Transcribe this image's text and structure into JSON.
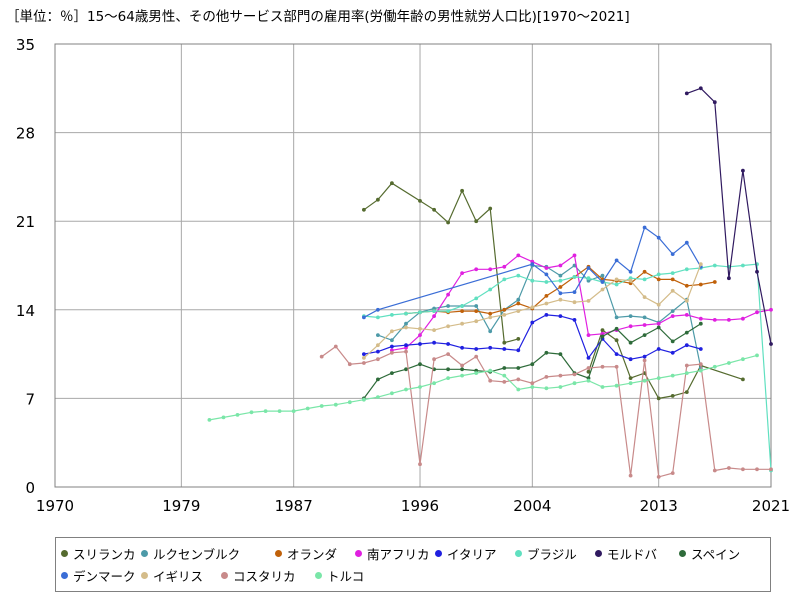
{
  "title": "［単位：％］15〜64歳男性、その他サービス部門の雇用率(労働年齢の男性就労人口比)[1970〜2021]",
  "chart_data": {
    "type": "line",
    "title": "［単位：％］15〜64歳男性、その他サービス部門の雇用率(労働年齢の男性就労人口比)[1970〜2021]",
    "xlabel": "",
    "ylabel": "",
    "xlim": [
      1970,
      2021
    ],
    "ylim": [
      0,
      35
    ],
    "x_ticks": [
      "1970",
      "1979",
      "1987",
      "1996",
      "2004",
      "2013",
      "2021"
    ],
    "y_ticks": [
      "0",
      "7",
      "14",
      "21",
      "28",
      "35"
    ],
    "grid": true,
    "legend_position": "bottom",
    "series": [
      {
        "name": "スリランカ",
        "color": "#556b2f",
        "x": [
          1992,
          1993,
          1994,
          1996,
          1997,
          1998,
          1999,
          2000,
          2001,
          2002,
          2003
        ],
        "y": [
          21.9,
          22.7,
          24.0,
          22.6,
          21.9,
          20.9,
          23.4,
          21.0,
          22.0,
          11.4,
          11.7
        ],
        "x2": [
          2008,
          2009,
          2010,
          2011,
          2012,
          2013,
          2014,
          2015,
          2016,
          2019
        ],
        "y2": [
          9.1,
          12.4,
          11.6,
          8.6,
          9.0,
          7.0,
          7.2,
          7.5,
          9.6,
          8.5
        ]
      },
      {
        "name": "ルクセンブルク",
        "color": "#4d9aa8",
        "x": [
          1993,
          1994,
          1995,
          1996,
          1997,
          1998,
          1999,
          2000,
          2001,
          2002,
          2003,
          2004,
          2005,
          2006,
          2007,
          2008,
          2009,
          2010,
          2011,
          2012,
          2013,
          2014,
          2015,
          2016
        ],
        "y": [
          12.0,
          11.6,
          12.9,
          13.8,
          14.1,
          14.3,
          14.3,
          14.3,
          12.3,
          14.0,
          14.8,
          17.5,
          17.4,
          16.7,
          17.5,
          16.3,
          16.7,
          13.4,
          13.5,
          13.4,
          13.0,
          13.9,
          14.8,
          9.4
        ]
      },
      {
        "name": "オランダ",
        "color": "#c0610a",
        "x": [
          1995,
          1996,
          1997,
          1998,
          1999,
          2000,
          2001,
          2002,
          2003,
          2004,
          2005,
          2006,
          2007,
          2008,
          2009,
          2010,
          2011,
          2012,
          2013,
          2014,
          2015,
          2016,
          2017
        ],
        "y": [
          13.7,
          13.8,
          13.9,
          13.8,
          13.9,
          13.9,
          13.7,
          14.0,
          14.5,
          14.1,
          15.1,
          15.8,
          16.6,
          17.4,
          16.4,
          16.3,
          16.1,
          17.0,
          16.4,
          16.4,
          15.9,
          16.0,
          16.2
        ]
      },
      {
        "name": "南アフリカ",
        "color": "#e020e0",
        "x": [
          1994,
          1995,
          1996,
          1997,
          1998,
          1999,
          2000,
          2001,
          2002,
          2003,
          2004,
          2005,
          2006,
          2007,
          2008,
          2009,
          2010,
          2011,
          2012,
          2013,
          2014,
          2015,
          2016,
          2017,
          2018,
          2019,
          2020,
          2021
        ],
        "y": [
          10.8,
          11.0,
          12.0,
          13.5,
          15.2,
          16.9,
          17.2,
          17.2,
          17.4,
          18.3,
          17.8,
          17.3,
          17.5,
          18.3,
          12.0,
          12.1,
          12.4,
          12.7,
          12.8,
          12.9,
          13.5,
          13.6,
          13.3,
          13.2,
          13.2,
          13.3,
          13.8,
          14.0
        ]
      },
      {
        "name": "イタリア",
        "color": "#2020e0",
        "x": [
          1992,
          1993,
          1994,
          1995,
          1996,
          1997,
          1998,
          1999,
          2000,
          2001,
          2002,
          2003,
          2004,
          2005,
          2006,
          2007,
          2008,
          2009,
          2010,
          2011,
          2012,
          2013,
          2014,
          2015,
          2016
        ],
        "y": [
          10.5,
          10.7,
          11.1,
          11.2,
          11.3,
          11.4,
          11.3,
          11.0,
          10.9,
          11.0,
          10.9,
          10.8,
          13.0,
          13.6,
          13.5,
          13.2,
          10.2,
          11.7,
          10.5,
          10.1,
          10.3,
          10.9,
          10.6,
          11.2,
          10.9
        ]
      },
      {
        "name": "ブラジル",
        "color": "#60e0c0",
        "x": [
          1992,
          1993,
          1994,
          1995,
          1996,
          1997,
          1998,
          1999,
          2000,
          2001,
          2002,
          2003,
          2004,
          2005,
          2006,
          2007,
          2008,
          2009,
          2010,
          2011,
          2012,
          2013,
          2014,
          2015,
          2016,
          2017,
          2018,
          2019,
          2020,
          2021
        ],
        "y": [
          13.5,
          13.4,
          13.6,
          13.7,
          13.8,
          13.9,
          13.9,
          14.3,
          14.9,
          15.6,
          16.4,
          16.7,
          16.3,
          16.2,
          16.3,
          16.6,
          16.5,
          16.2,
          16.0,
          16.5,
          16.4,
          16.8,
          16.9,
          17.2,
          17.3,
          17.5,
          17.4,
          17.5,
          17.6,
          1.3
        ]
      },
      {
        "name": "モルドバ",
        "color": "#301a60",
        "x": [
          2015,
          2016,
          2017,
          2018,
          2019,
          2020,
          2021
        ],
        "y": [
          31.1,
          31.5,
          30.4,
          16.5,
          25.0,
          17.0,
          11.3
        ]
      },
      {
        "name": "スペイン",
        "color": "#2e6b3a",
        "x": [
          1992,
          1993,
          1994,
          1995,
          1996,
          1997,
          1998,
          1999,
          2000,
          2001,
          2002,
          2003,
          2004,
          2005,
          2006,
          2007,
          2008,
          2009,
          2010,
          2011,
          2012,
          2013,
          2014,
          2015,
          2016
        ],
        "y": [
          7.0,
          8.5,
          9.0,
          9.3,
          9.7,
          9.3,
          9.3,
          9.3,
          9.2,
          9.1,
          9.4,
          9.4,
          9.7,
          10.6,
          10.5,
          9.0,
          8.6,
          11.9,
          12.5,
          11.4,
          12.0,
          12.6,
          11.5,
          12.2,
          12.9
        ]
      },
      {
        "name": "デンマーク",
        "color": "#3a6dd6",
        "x": [
          1992,
          1993,
          2004,
          2005,
          2006,
          2007,
          2008,
          2009,
          2010,
          2011,
          2012,
          2013,
          2014,
          2015,
          2016
        ],
        "y": [
          13.4,
          14.0,
          17.6,
          16.8,
          15.3,
          15.4,
          17.3,
          16.2,
          17.9,
          17.0,
          20.5,
          19.7,
          18.4,
          19.3,
          17.4
        ]
      },
      {
        "name": "イギリス",
        "color": "#d4bc8a",
        "x": [
          1992,
          1993,
          1994,
          1995,
          1996,
          1997,
          1998,
          1999,
          2000,
          2001,
          2002,
          2003,
          2004,
          2005,
          2006,
          2007,
          2008,
          2009,
          2010,
          2011,
          2012,
          2013,
          2014,
          2015,
          2016
        ],
        "y": [
          10.2,
          11.2,
          12.3,
          12.6,
          12.5,
          12.4,
          12.7,
          12.9,
          13.1,
          13.4,
          13.6,
          13.9,
          14.2,
          14.5,
          14.8,
          14.6,
          14.7,
          15.6,
          16.4,
          16.3,
          15.0,
          14.4,
          15.5,
          14.7,
          17.6
        ]
      },
      {
        "name": "コスタリカ",
        "color": "#c88a8a",
        "x": [
          1989,
          1990,
          1991,
          1992,
          1993,
          1994,
          1995,
          1996,
          1997,
          1998,
          1999,
          2000,
          2001,
          2002,
          2003,
          2004,
          2005,
          2006,
          2007,
          2008,
          2009,
          2010,
          2011,
          2012,
          2013,
          2014,
          2015,
          2016,
          2017,
          2018,
          2019,
          2020,
          2021
        ],
        "y": [
          10.3,
          11.1,
          9.7,
          9.8,
          10.1,
          10.6,
          10.7,
          1.8,
          10.1,
          10.5,
          9.6,
          10.3,
          8.4,
          8.3,
          8.5,
          8.2,
          8.7,
          8.8,
          8.9,
          9.4,
          9.5,
          9.5,
          0.9,
          10.0,
          0.8,
          1.1,
          9.6,
          9.7,
          1.3,
          1.5,
          1.4,
          1.4,
          1.4
        ]
      },
      {
        "name": "トルコ",
        "color": "#7ae6a8",
        "x": [
          1981,
          1982,
          1983,
          1984,
          1985,
          1986,
          1987,
          1988,
          1989,
          1990,
          1991,
          1992,
          1993,
          1994,
          1995,
          1996,
          1997,
          1998,
          1999,
          2000,
          2001,
          2002,
          2003,
          2004,
          2005,
          2006,
          2007,
          2008,
          2009,
          2010,
          2011,
          2012,
          2013,
          2014,
          2015,
          2016,
          2017,
          2018,
          2019,
          2020
        ],
        "y": [
          5.3,
          5.5,
          5.7,
          5.9,
          6.0,
          6.0,
          6.0,
          6.2,
          6.4,
          6.5,
          6.7,
          6.9,
          7.1,
          7.4,
          7.7,
          7.9,
          8.2,
          8.6,
          8.8,
          9.0,
          9.2,
          8.8,
          7.7,
          7.9,
          7.8,
          7.9,
          8.2,
          8.4,
          7.9,
          8.0,
          8.2,
          8.4,
          8.6,
          8.8,
          9.0,
          9.2,
          9.5,
          9.8,
          10.1,
          10.4
        ]
      }
    ]
  },
  "legend": {
    "items": [
      "スリランカ",
      "ルクセンブルク",
      "オランダ",
      "南アフリカ",
      "イタリア",
      "ブラジル",
      "モルドバ",
      "スペイン",
      "デンマーク",
      "イギリス",
      "コスタリカ",
      "トルコ"
    ]
  }
}
